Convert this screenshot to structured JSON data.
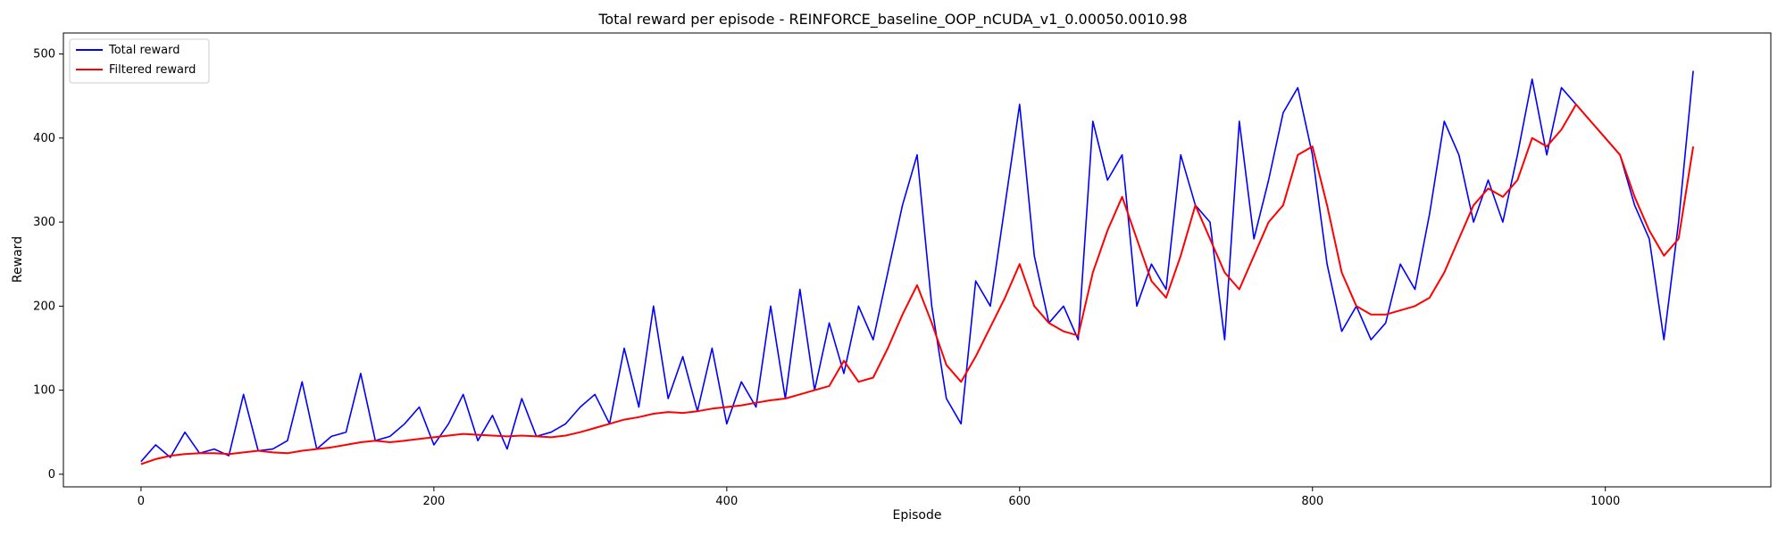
{
  "chart_data": {
    "type": "line",
    "title": "Total reward per episode - REINFORCE_baseline_OOP_nCUDA_v1_0.00050.0010.98",
    "xlabel": "Episode",
    "ylabel": "Reward",
    "xlim": [
      -53,
      1113
    ],
    "ylim": [
      -15,
      525
    ],
    "x_ticks": [
      0,
      200,
      400,
      600,
      800,
      1000
    ],
    "y_ticks": [
      0,
      100,
      200,
      300,
      400,
      500
    ],
    "grid": false,
    "legend_position": "top-left",
    "series": [
      {
        "name": "Total reward",
        "color": "#0000ff",
        "note_shape": "noisy per-episode reward",
        "x": [
          0,
          10,
          20,
          30,
          40,
          50,
          60,
          70,
          80,
          90,
          100,
          110,
          120,
          130,
          140,
          150,
          160,
          170,
          180,
          190,
          200,
          210,
          220,
          230,
          240,
          250,
          260,
          270,
          280,
          290,
          300,
          310,
          320,
          330,
          340,
          350,
          360,
          370,
          380,
          390,
          400,
          410,
          420,
          430,
          440,
          450,
          460,
          470,
          480,
          490,
          500,
          510,
          520,
          530,
          540,
          550,
          560,
          570,
          580,
          590,
          600,
          610,
          620,
          630,
          640,
          650,
          660,
          670,
          680,
          690,
          700,
          710,
          720,
          730,
          740,
          750,
          760,
          770,
          780,
          790,
          800,
          810,
          820,
          830,
          840,
          850,
          860,
          870,
          880,
          890,
          900,
          910,
          920,
          930,
          940,
          950,
          960,
          970,
          980,
          990,
          1000,
          1010,
          1020,
          1030,
          1040,
          1050,
          1060
        ],
        "values": [
          15,
          35,
          20,
          50,
          25,
          30,
          22,
          95,
          28,
          30,
          40,
          110,
          30,
          45,
          50,
          120,
          40,
          45,
          60,
          80,
          35,
          60,
          95,
          40,
          70,
          30,
          90,
          45,
          50,
          60,
          80,
          95,
          60,
          150,
          80,
          200,
          90,
          140,
          75,
          150,
          60,
          110,
          80,
          200,
          90,
          220,
          100,
          180,
          120,
          200,
          160,
          240,
          320,
          380,
          200,
          90,
          60,
          230,
          200,
          320,
          440,
          260,
          180,
          200,
          160,
          420,
          350,
          380,
          200,
          250,
          220,
          380,
          320,
          300,
          160,
          420,
          280,
          350,
          430,
          460,
          380,
          250,
          170,
          200,
          160,
          180,
          250,
          220,
          310,
          420,
          380,
          300,
          350,
          300,
          380,
          470,
          380,
          460,
          440,
          420,
          400,
          380,
          320,
          280,
          160,
          300,
          480
        ],
        "ylim_note": "values capped at 500"
      },
      {
        "name": "Filtered reward",
        "color": "#ff0000",
        "x": [
          0,
          10,
          20,
          30,
          40,
          50,
          60,
          70,
          80,
          90,
          100,
          110,
          120,
          130,
          140,
          150,
          160,
          170,
          180,
          190,
          200,
          210,
          220,
          230,
          240,
          250,
          260,
          270,
          280,
          290,
          300,
          310,
          320,
          330,
          340,
          350,
          360,
          370,
          380,
          390,
          400,
          410,
          420,
          430,
          440,
          450,
          460,
          470,
          480,
          490,
          500,
          510,
          520,
          530,
          540,
          550,
          560,
          570,
          580,
          590,
          600,
          610,
          620,
          630,
          640,
          650,
          660,
          670,
          680,
          690,
          700,
          710,
          720,
          730,
          740,
          750,
          760,
          770,
          780,
          790,
          800,
          810,
          820,
          830,
          840,
          850,
          860,
          870,
          880,
          890,
          900,
          910,
          920,
          930,
          940,
          950,
          960,
          970,
          980,
          990,
          1000,
          1010,
          1020,
          1030,
          1040,
          1050,
          1060
        ],
        "values": [
          12,
          18,
          22,
          24,
          25,
          25,
          24,
          26,
          28,
          26,
          25,
          28,
          30,
          32,
          35,
          38,
          40,
          38,
          40,
          42,
          44,
          46,
          48,
          47,
          46,
          45,
          46,
          45,
          44,
          46,
          50,
          55,
          60,
          65,
          68,
          72,
          74,
          73,
          75,
          78,
          80,
          82,
          85,
          88,
          90,
          95,
          100,
          105,
          135,
          110,
          115,
          150,
          190,
          225,
          180,
          130,
          110,
          140,
          175,
          210,
          250,
          200,
          180,
          170,
          165,
          240,
          290,
          330,
          280,
          230,
          210,
          260,
          320,
          280,
          240,
          220,
          260,
          300,
          320,
          380,
          390,
          320,
          240,
          200,
          190,
          190,
          195,
          200,
          210,
          240,
          280,
          320,
          340,
          330,
          350,
          400,
          390,
          410,
          440,
          420,
          400,
          380,
          330,
          290,
          260,
          280,
          390
        ]
      }
    ]
  }
}
